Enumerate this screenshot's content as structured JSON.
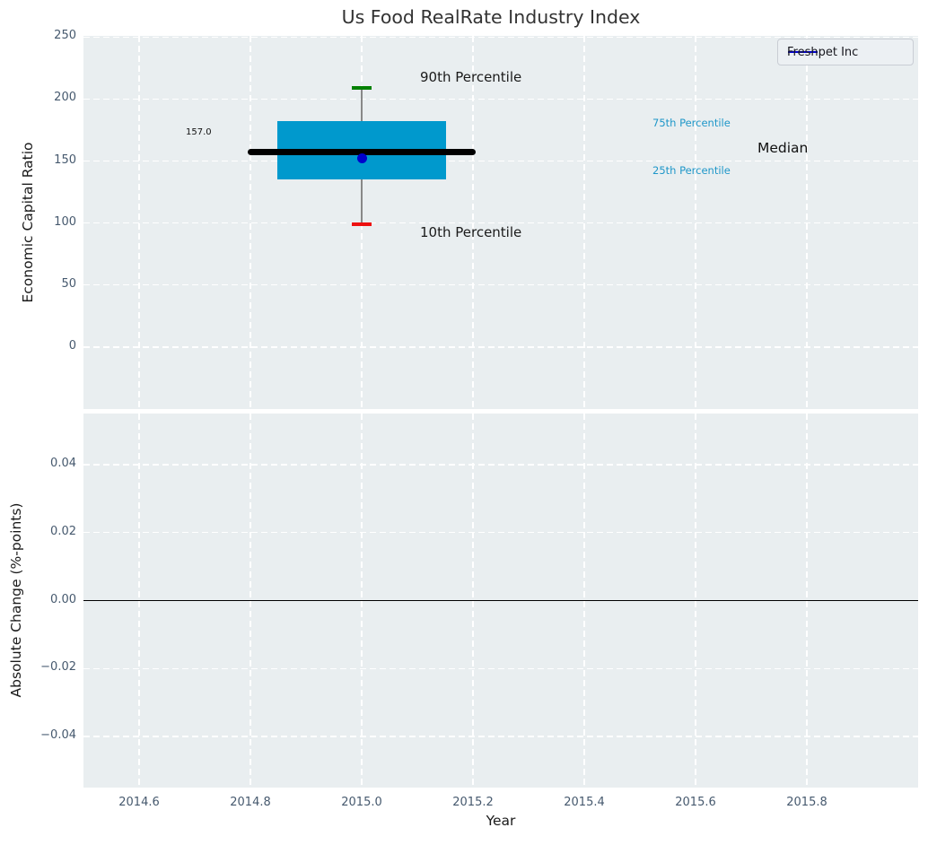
{
  "title": "Us Food RealRate Industry Index",
  "chart_data": [
    {
      "type": "boxplot",
      "ylabel": "Economic Capital Ratio",
      "ylim": [
        -50,
        251
      ],
      "xlim": [
        2014.5,
        2016.0
      ],
      "ytick_values": [
        0,
        50,
        100,
        150,
        200,
        250
      ],
      "ytick_labels": [
        "0",
        "50",
        "100",
        "150",
        "200",
        "250"
      ],
      "grid": "white-dashed",
      "legend": {
        "label": "Freshpet Inc",
        "position": "upper-right"
      },
      "box": {
        "x": 2015.0,
        "p90": 209,
        "p75": 182,
        "median": 157,
        "p25": 135,
        "p10": 99,
        "company_value": 152,
        "box_half_width": 0.151,
        "median_half_width": 0.205,
        "cap_half_width": 0.018
      },
      "annotations": {
        "p90": "90th Percentile",
        "p10": "10th Percentile",
        "p75": "75th Percentile",
        "p25": "25th Percentile",
        "median": "Median",
        "median_value": "157.0"
      }
    },
    {
      "type": "line",
      "ylabel": "Absolute Change (%-points)",
      "xlabel": "Year",
      "ylim": [
        -0.055,
        0.055
      ],
      "xlim": [
        2014.5,
        2016.0
      ],
      "ytick_values": [
        0.04,
        0.02,
        0,
        -0.02,
        -0.04
      ],
      "ytick_labels": [
        "0.04",
        "0.02",
        "0.00",
        "−0.02",
        "−0.04"
      ],
      "xtick_values": [
        2014.6,
        2014.8,
        2015.0,
        2015.2,
        2015.4,
        2015.6,
        2015.8
      ],
      "xtick_labels": [
        "2014.6",
        "2014.8",
        "2015.0",
        "2015.2",
        "2015.4",
        "2015.6",
        "2015.8"
      ],
      "zero_line_y": 0.0,
      "grid": "white-dashed"
    }
  ],
  "colors": {
    "axes_background": "#E9EEF0",
    "grid": "#FFFFFF",
    "box_fill": "#0099CD",
    "median_line": "#000000",
    "whisker": "#888888",
    "cap_p90": "#008000",
    "cap_p10": "#EE1111",
    "company_dot": "#0000CD",
    "legend_line": "#0000CD",
    "percentile_label_blue": "#1F97C9",
    "tick_label": "#46596E",
    "zero_line": "#000000",
    "title_color": "#333333"
  }
}
